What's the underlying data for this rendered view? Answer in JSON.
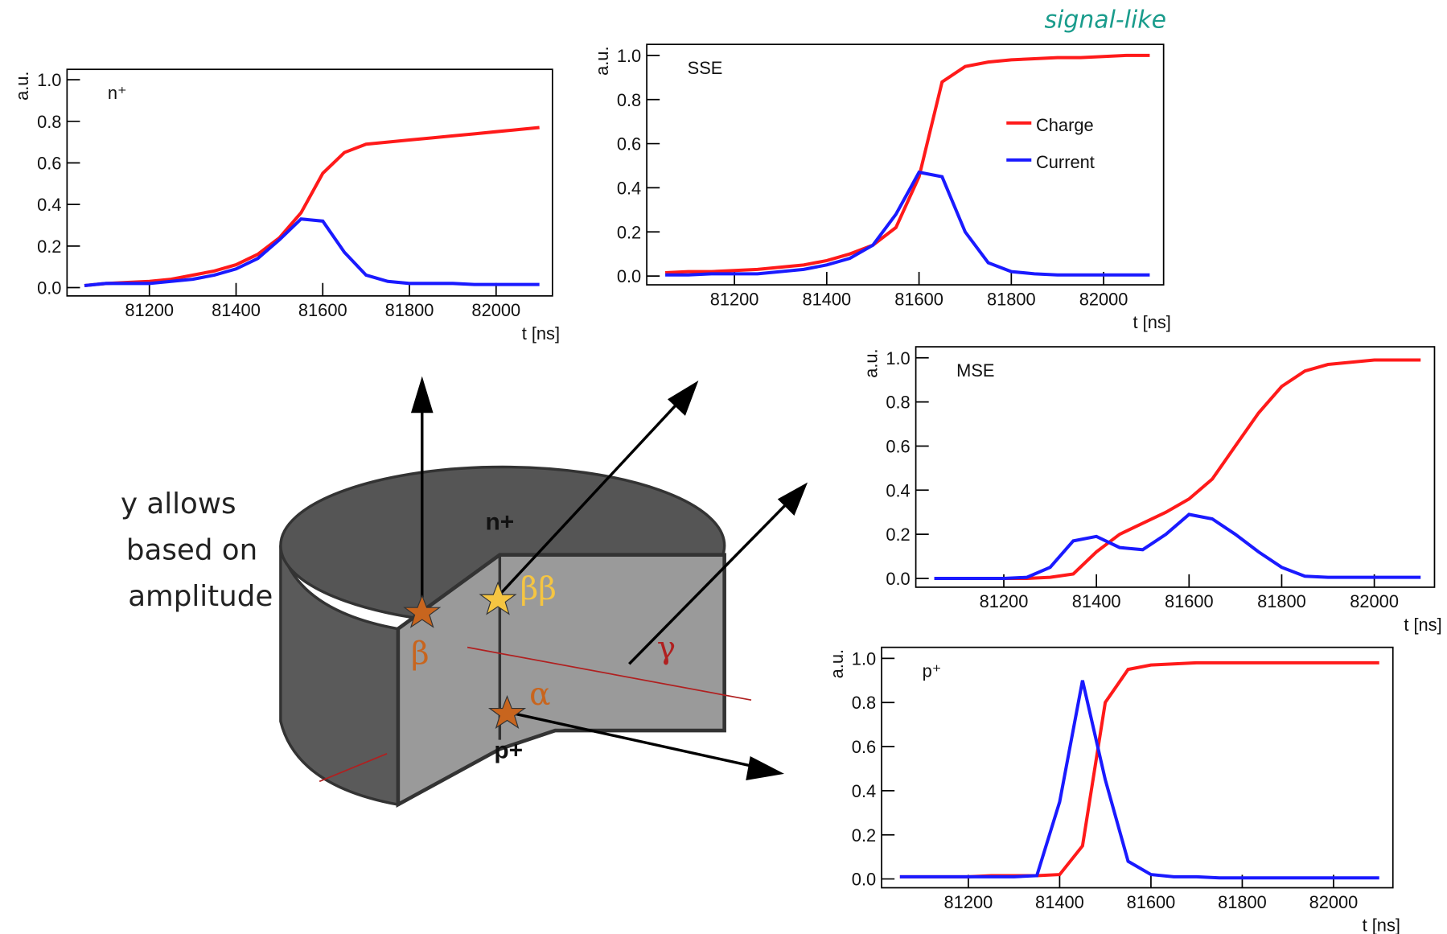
{
  "chart_data": [
    {
      "type": "line",
      "title": "n⁺",
      "xlabel": "t [ns]",
      "ylabel": "a.u.",
      "x": [
        81050,
        81100,
        81150,
        81200,
        81250,
        81300,
        81350,
        81400,
        81450,
        81500,
        81550,
        81600,
        81650,
        81700,
        81750,
        81800,
        81850,
        81900,
        81950,
        82000,
        82050,
        82100
      ],
      "series": [
        {
          "color": "#ff1a1a",
          "values": [
            0.01,
            0.02,
            0.025,
            0.03,
            0.04,
            0.06,
            0.08,
            0.11,
            0.16,
            0.24,
            0.36,
            0.55,
            0.65,
            0.69,
            0.7,
            0.71,
            0.72,
            0.73,
            0.74,
            0.75,
            0.76,
            0.77
          ]
        },
        {
          "color": "#1a1aff",
          "values": [
            0.01,
            0.02,
            0.02,
            0.02,
            0.03,
            0.04,
            0.06,
            0.09,
            0.14,
            0.23,
            0.33,
            0.32,
            0.17,
            0.06,
            0.03,
            0.02,
            0.02,
            0.02,
            0.015,
            0.015,
            0.015,
            0.015
          ]
        }
      ],
      "xlim": [
        81010,
        82130
      ],
      "ylim": [
        -0.04,
        1.05
      ],
      "xticks": [
        81200,
        81400,
        81600,
        81800,
        82000
      ],
      "yticks": [
        {
          "value": 0,
          "label": "0.0"
        },
        0.2,
        0.4,
        0.6,
        0.8,
        {
          "value": 1,
          "label": "1.0"
        }
      ]
    },
    {
      "type": "line",
      "title": "SSE",
      "xlabel": "t [ns]",
      "ylabel": "a.u.",
      "legend": "upper right",
      "x": [
        81050,
        81100,
        81150,
        81200,
        81250,
        81300,
        81350,
        81400,
        81450,
        81500,
        81550,
        81600,
        81650,
        81700,
        81750,
        81800,
        81850,
        81900,
        81950,
        82000,
        82050,
        82100
      ],
      "series": [
        {
          "name": "Charge",
          "color": "#ff1a1a",
          "values": [
            0.015,
            0.02,
            0.02,
            0.025,
            0.03,
            0.04,
            0.05,
            0.07,
            0.1,
            0.14,
            0.22,
            0.45,
            0.88,
            0.95,
            0.97,
            0.98,
            0.985,
            0.99,
            0.99,
            0.995,
            1.0,
            1.0
          ]
        },
        {
          "name": "Current",
          "color": "#1a1aff",
          "values": [
            0.005,
            0.005,
            0.01,
            0.01,
            0.01,
            0.02,
            0.03,
            0.05,
            0.08,
            0.14,
            0.28,
            0.47,
            0.45,
            0.2,
            0.06,
            0.02,
            0.01,
            0.005,
            0.005,
            0.005,
            0.005,
            0.005
          ]
        }
      ],
      "xlim": [
        81010,
        82130
      ],
      "ylim": [
        -0.04,
        1.05
      ],
      "xticks": [
        81200,
        81400,
        81600,
        81800,
        82000
      ],
      "yticks": [
        {
          "value": 0,
          "label": "0.0"
        },
        0.2,
        0.4,
        0.6,
        0.8,
        {
          "value": 1,
          "label": "1.0"
        }
      ]
    },
    {
      "type": "line",
      "title": "MSE",
      "xlabel": "t [ns]",
      "ylabel": "a.u.",
      "x": [
        81050,
        81100,
        81150,
        81200,
        81250,
        81300,
        81350,
        81400,
        81450,
        81500,
        81550,
        81600,
        81650,
        81700,
        81750,
        81800,
        81850,
        81900,
        81950,
        82000,
        82050,
        82100
      ],
      "series": [
        {
          "color": "#ff1a1a",
          "values": [
            0,
            0,
            0,
            0,
            0,
            0.005,
            0.02,
            0.12,
            0.2,
            0.25,
            0.3,
            0.36,
            0.45,
            0.6,
            0.75,
            0.87,
            0.94,
            0.97,
            0.98,
            0.99,
            0.99,
            0.99
          ]
        },
        {
          "color": "#1a1aff",
          "values": [
            0,
            0,
            0,
            0,
            0.005,
            0.05,
            0.17,
            0.19,
            0.14,
            0.13,
            0.2,
            0.29,
            0.27,
            0.2,
            0.12,
            0.05,
            0.01,
            0.005,
            0.005,
            0.005,
            0.005,
            0.005
          ]
        }
      ],
      "xlim": [
        81010,
        82130
      ],
      "ylim": [
        -0.04,
        1.05
      ],
      "xticks": [
        81200,
        81400,
        81600,
        81800,
        82000
      ],
      "yticks": [
        {
          "value": 0,
          "label": "0.0"
        },
        0.2,
        0.4,
        0.6,
        0.8,
        {
          "value": 1,
          "label": "1.0"
        }
      ]
    },
    {
      "type": "line",
      "title": "p⁺",
      "xlabel": "t [ns]",
      "ylabel": "a.u.",
      "x": [
        81050,
        81100,
        81150,
        81200,
        81250,
        81300,
        81350,
        81400,
        81450,
        81500,
        81550,
        81600,
        81650,
        81700,
        81750,
        81800,
        81850,
        81900,
        81950,
        82000,
        82050,
        82100
      ],
      "series": [
        {
          "color": "#ff1a1a",
          "values": [
            0.01,
            0.01,
            0.01,
            0.01,
            0.015,
            0.015,
            0.015,
            0.02,
            0.15,
            0.8,
            0.95,
            0.97,
            0.975,
            0.98,
            0.98,
            0.98,
            0.98,
            0.98,
            0.98,
            0.98,
            0.98,
            0.98
          ]
        },
        {
          "color": "#1a1aff",
          "values": [
            0.01,
            0.01,
            0.01,
            0.01,
            0.01,
            0.01,
            0.015,
            0.35,
            0.9,
            0.45,
            0.08,
            0.02,
            0.01,
            0.01,
            0.005,
            0.005,
            0.005,
            0.005,
            0.005,
            0.005,
            0.005,
            0.005
          ]
        }
      ],
      "xlim": [
        81010,
        82130
      ],
      "ylim": [
        -0.04,
        1.05
      ],
      "xticks": [
        81200,
        81400,
        81600,
        81800,
        82000
      ],
      "yticks": [
        {
          "value": 0,
          "label": "0.0"
        },
        0.2,
        0.4,
        0.6,
        0.8,
        {
          "value": 1,
          "label": "1.0"
        }
      ]
    }
  ],
  "annotations": {
    "signal_like": "signal-like",
    "side_text": [
      "y allows",
      "based on",
      "amplitude"
    ],
    "diagram": {
      "n_plus": "n+",
      "beta_beta": "ββ",
      "beta": "β",
      "gamma": "γ",
      "alpha": "α",
      "p_plus": "p+"
    }
  }
}
